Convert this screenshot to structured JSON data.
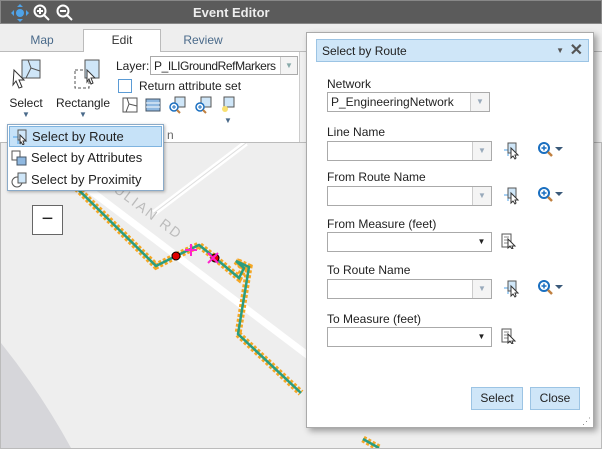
{
  "app": {
    "title": "Event Editor"
  },
  "toolbar": {
    "icons": [
      "pan-icon",
      "zoom-in-icon",
      "zoom-out-icon"
    ]
  },
  "tabs": [
    {
      "label": "Map"
    },
    {
      "label": "Edit",
      "active": true
    },
    {
      "label": "Review"
    }
  ],
  "ribbon": {
    "select_label": "Select",
    "rectangle_label": "Rectangle",
    "layer_label": "Layer:",
    "layer_value": "P_ILIGroundRefMarkers",
    "return_attr_label": "Return attribute set",
    "return_attr_checked": false,
    "group_label_fragment": "n"
  },
  "select_menu": {
    "items": [
      {
        "label": "Select by Route",
        "highlighted": true
      },
      {
        "label": "Select by Attributes"
      },
      {
        "label": "Select by Proximity"
      }
    ]
  },
  "map": {
    "zoom_out_label": "−",
    "road_label": "W JULIAN RD",
    "colors": {
      "route": "#2a9d80",
      "route_highlight": "#f5a623",
      "marker": "#e00000",
      "cross": "#ff22cc"
    }
  },
  "dialog": {
    "title": "Select by Route",
    "network_label": "Network",
    "network_value": "P_EngineeringNetwork",
    "line_name_label": "Line Name",
    "line_name_value": "",
    "from_route_label": "From Route Name",
    "from_route_value": "",
    "from_measure_label": "From Measure (feet)",
    "from_measure_value": "",
    "to_route_label": "To Route Name",
    "to_route_value": "",
    "to_measure_label": "To Measure (feet)",
    "to_measure_value": "",
    "select_button": "Select",
    "close_button": "Close"
  }
}
